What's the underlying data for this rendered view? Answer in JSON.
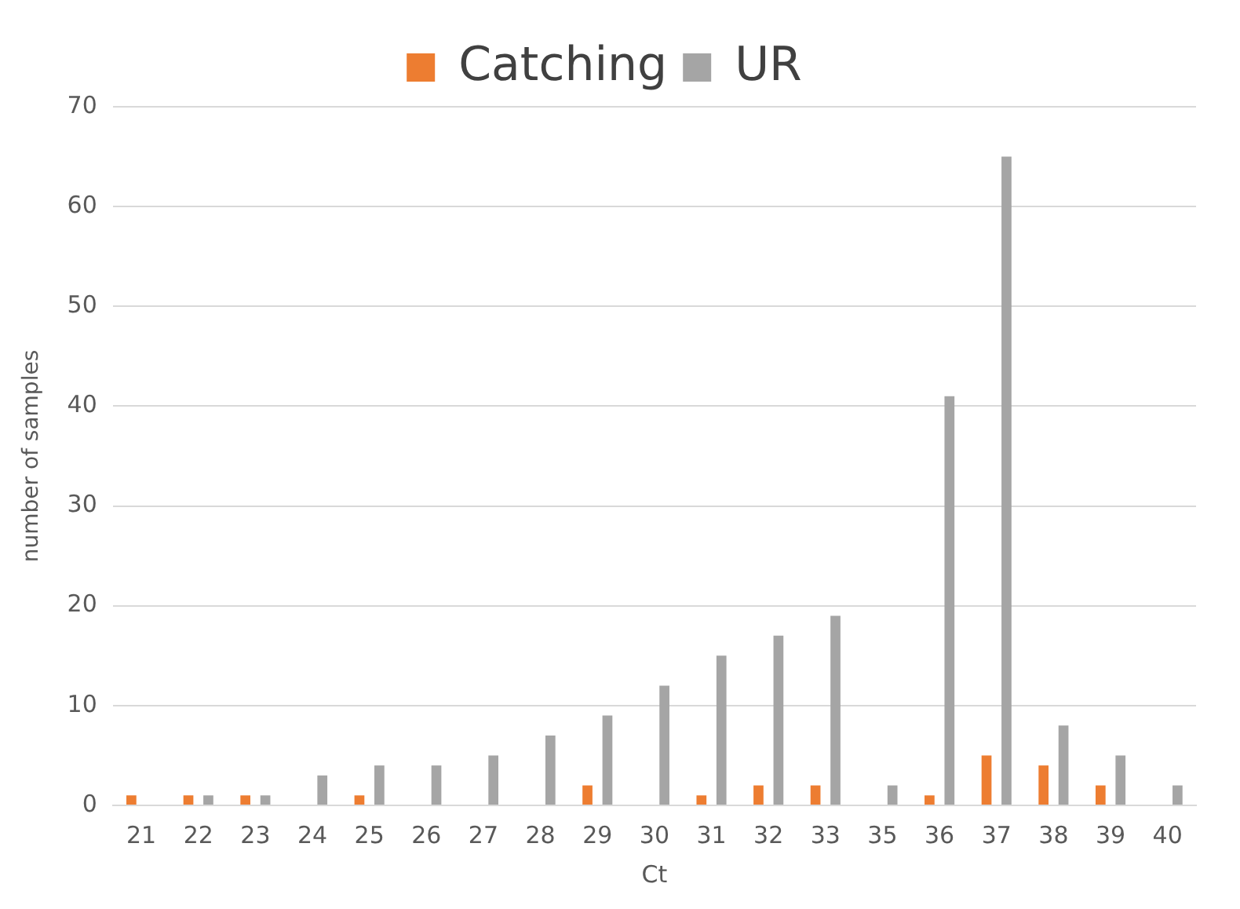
{
  "chart_data": {
    "type": "bar",
    "xlabel": "Ct",
    "ylabel": "number of samples",
    "categories": [
      "21",
      "22",
      "23",
      "24",
      "25",
      "26",
      "27",
      "28",
      "29",
      "30",
      "31",
      "32",
      "33",
      "35",
      "36",
      "37",
      "38",
      "39",
      "40"
    ],
    "series": [
      {
        "name": "Catching",
        "color": "#ed7d31",
        "values": [
          1,
          1,
          1,
          0,
          1,
          0,
          0,
          0,
          2,
          0,
          1,
          2,
          2,
          0,
          1,
          5,
          4,
          2,
          0
        ]
      },
      {
        "name": "UR",
        "color": "#a5a5a5",
        "values": [
          0,
          1,
          1,
          3,
          4,
          4,
          5,
          7,
          9,
          12,
          15,
          17,
          19,
          2,
          41,
          65,
          8,
          5,
          2
        ]
      }
    ],
    "ylim": [
      0,
      70
    ],
    "yticks": [
      0,
      10,
      20,
      30,
      40,
      50,
      60,
      70
    ],
    "grid": "y",
    "legend": "top"
  }
}
